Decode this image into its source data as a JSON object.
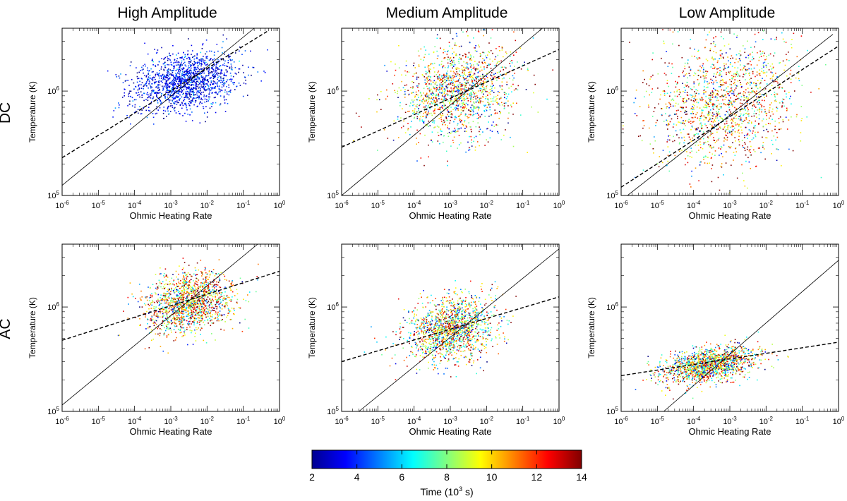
{
  "figure": {
    "column_titles": [
      "High Amplitude",
      "Medium Amplitude",
      "Low Amplitude"
    ],
    "row_titles": [
      "DC",
      "AC"
    ],
    "xlabel": "Ohmic Heating Rate",
    "ylabel": "Temperature (K)",
    "x_tick_labels": [
      {
        "base": "10",
        "exp": "-6"
      },
      {
        "base": "10",
        "exp": "-5"
      },
      {
        "base": "10",
        "exp": "-4"
      },
      {
        "base": "10",
        "exp": "-3"
      },
      {
        "base": "10",
        "exp": "-2"
      },
      {
        "base": "10",
        "exp": "-1"
      },
      {
        "base": "10",
        "exp": "0"
      }
    ],
    "y_tick_labels": [
      {
        "base": "10",
        "exp": "5"
      },
      {
        "base": "10",
        "exp": "6"
      }
    ],
    "colorbar": {
      "label_text": "Time (10",
      "label_exp": "3",
      "label_end": " s)",
      "tick_labels": [
        "2",
        "4",
        "6",
        "8",
        "10",
        "12",
        "14"
      ],
      "min": 2,
      "max": 14,
      "colormap": "jet"
    }
  },
  "chart_data": [
    {
      "type": "scatter",
      "row": "DC",
      "column": "High Amplitude",
      "xscale": "log",
      "yscale": "log",
      "xlim": [
        1e-06,
        1
      ],
      "ylim": [
        100000.0,
        4000000.0
      ],
      "cloud": {
        "x_center_log": -2.6,
        "x_spread_log": 0.75,
        "y_center_log": 6.1,
        "y_spread_log": 0.14,
        "time_mean": 3.5,
        "time_spread": 1.0
      },
      "solid_fit": {
        "x": [
          1e-06,
          0.2
        ],
        "y": [
          125000.0,
          4000000.0
        ]
      },
      "dashed_fit": {
        "x": [
          1e-06,
          0.5
        ],
        "y": [
          230000.0,
          3800000.0
        ]
      }
    },
    {
      "type": "scatter",
      "row": "DC",
      "column": "Medium Amplitude",
      "xscale": "log",
      "yscale": "log",
      "xlim": [
        1e-06,
        1
      ],
      "ylim": [
        100000.0,
        4000000.0
      ],
      "cloud": {
        "x_center_log": -2.8,
        "x_spread_log": 0.8,
        "y_center_log": 6.0,
        "y_spread_log": 0.22,
        "time_mean": 9.0,
        "time_spread": 3.5
      },
      "solid_fit": {
        "x": [
          1e-06,
          0.35
        ],
        "y": [
          100000.0,
          4000000.0
        ]
      },
      "dashed_fit": {
        "x": [
          1e-06,
          1
        ],
        "y": [
          290000.0,
          2500000.0
        ]
      }
    },
    {
      "type": "scatter",
      "row": "DC",
      "column": "Low Amplitude",
      "xscale": "log",
      "yscale": "log",
      "xlim": [
        1e-06,
        1
      ],
      "ylim": [
        100000.0,
        4000000.0
      ],
      "cloud": {
        "x_center_log": -3.2,
        "x_spread_log": 1.0,
        "y_center_log": 5.9,
        "y_spread_log": 0.3,
        "time_mean": 10.0,
        "time_spread": 3.5
      },
      "solid_fit": {
        "x": [
          1.5e-06,
          0.7
        ],
        "y": [
          100000.0,
          3500000.0
        ]
      },
      "dashed_fit": {
        "x": [
          1e-06,
          1
        ],
        "y": [
          120000.0,
          2700000.0
        ]
      }
    },
    {
      "type": "scatter",
      "row": "AC",
      "column": "High Amplitude",
      "xscale": "log",
      "yscale": "log",
      "xlim": [
        1e-06,
        1
      ],
      "ylim": [
        100000.0,
        4000000.0
      ],
      "cloud": {
        "x_center_log": -2.5,
        "x_spread_log": 0.6,
        "y_center_log": 6.05,
        "y_spread_log": 0.14,
        "time_mean": 10.0,
        "time_spread": 3.5
      },
      "solid_fit": {
        "x": [
          1e-06,
          0.25
        ],
        "y": [
          115000.0,
          4000000.0
        ]
      },
      "dashed_fit": {
        "x": [
          1e-06,
          1
        ],
        "y": [
          480000.0,
          2200000.0
        ]
      }
    },
    {
      "type": "scatter",
      "row": "AC",
      "column": "Medium Amplitude",
      "xscale": "log",
      "yscale": "log",
      "xlim": [
        1e-06,
        1
      ],
      "ylim": [
        100000.0,
        4000000.0
      ],
      "cloud": {
        "x_center_log": -3.0,
        "x_spread_log": 0.6,
        "y_center_log": 5.8,
        "y_spread_log": 0.15,
        "time_mean": 9.0,
        "time_spread": 3.5
      },
      "solid_fit": {
        "x": [
          3e-06,
          1
        ],
        "y": [
          100000.0,
          3600000.0
        ]
      },
      "dashed_fit": {
        "x": [
          1e-06,
          1
        ],
        "y": [
          300000.0,
          1250000.0
        ]
      }
    },
    {
      "type": "scatter",
      "row": "AC",
      "column": "Low Amplitude",
      "xscale": "log",
      "yscale": "log",
      "xlim": [
        1e-06,
        1
      ],
      "ylim": [
        100000.0,
        4000000.0
      ],
      "cloud": {
        "x_center_log": -3.6,
        "x_spread_log": 0.65,
        "y_center_log": 5.45,
        "y_spread_log": 0.08,
        "time_mean": 9.0,
        "time_spread": 3.5
      },
      "solid_fit": {
        "x": [
          1.5e-05,
          1
        ],
        "y": [
          100000.0,
          2800000.0
        ]
      },
      "dashed_fit": {
        "x": [
          1e-06,
          1
        ],
        "y": [
          220000.0,
          460000.0
        ]
      }
    }
  ]
}
